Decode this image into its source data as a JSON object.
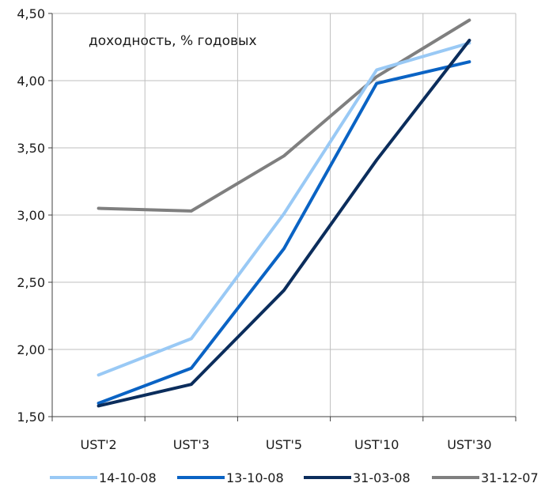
{
  "chart_data": {
    "type": "line",
    "annotation": "доходность, % годовых",
    "categories": [
      "UST'2",
      "UST'3",
      "UST'5",
      "UST'10",
      "UST'30"
    ],
    "ylim": [
      1.5,
      4.5
    ],
    "yticks": [
      1.5,
      2.0,
      2.5,
      3.0,
      3.5,
      4.0,
      4.5
    ],
    "ytick_labels": [
      "1,50",
      "2,00",
      "2,50",
      "3,00",
      "3,50",
      "4,00",
      "4,50"
    ],
    "grid": true,
    "legend_position": "bottom",
    "series": [
      {
        "name": "14-10-08",
        "color": "#99c9f5",
        "values": [
          1.81,
          2.08,
          3.01,
          4.08,
          4.28
        ]
      },
      {
        "name": "13-10-08",
        "color": "#0a63c4",
        "values": [
          1.6,
          1.86,
          2.75,
          3.98,
          4.14
        ]
      },
      {
        "name": "31-03-08",
        "color": "#0b2d5c",
        "values": [
          1.58,
          1.74,
          2.44,
          3.41,
          4.3
        ]
      },
      {
        "name": "31-12-07",
        "color": "#7f7f7f",
        "values": [
          3.05,
          3.03,
          3.44,
          4.03,
          4.45
        ]
      }
    ]
  }
}
